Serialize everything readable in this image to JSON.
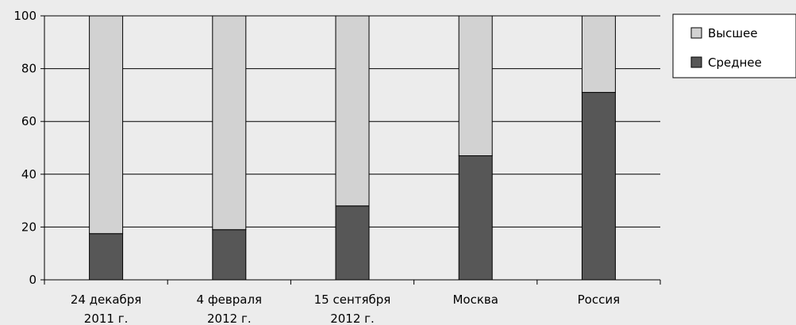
{
  "chart_data": {
    "type": "bar",
    "stacked": true,
    "categories": [
      [
        "24 декабря",
        "2011 г."
      ],
      [
        "4 февраля",
        "2012  г."
      ],
      [
        "15 сентября",
        "2012  г."
      ],
      [
        "Москва"
      ],
      [
        "Россия"
      ]
    ],
    "series": [
      {
        "name": "Среднее",
        "color": "#575757",
        "values": [
          17.5,
          19,
          28,
          47,
          71
        ]
      },
      {
        "name": "Высшее",
        "color": "#d2d2d2",
        "values": [
          82.5,
          81,
          72,
          53,
          29
        ]
      }
    ],
    "legend_order": [
      "Высшее",
      "Среднее"
    ],
    "ylim": [
      0,
      100
    ],
    "yticks": [
      0,
      20,
      40,
      60,
      80,
      100
    ],
    "grid": true,
    "legend": "top-right",
    "title": "",
    "xlabel": "",
    "ylabel": ""
  }
}
